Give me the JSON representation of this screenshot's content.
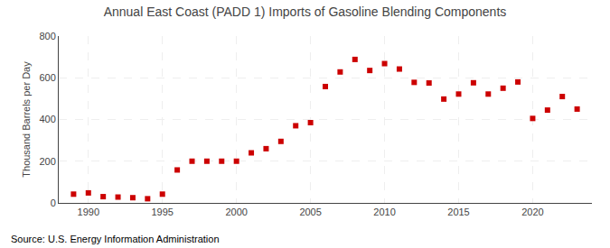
{
  "chart_data": {
    "type": "scatter",
    "title": "Annual East Coast (PADD 1) Imports of Gasoline Blending Components",
    "ylabel": "Thousand Barrels per Day",
    "annotations": [
      "Source: U.S. Energy Information Administration"
    ],
    "x": [
      1989,
      1990,
      1991,
      1992,
      1993,
      1994,
      1995,
      1996,
      1997,
      1998,
      1999,
      2000,
      2001,
      2002,
      2003,
      2004,
      2005,
      2006,
      2007,
      2008,
      2009,
      2010,
      2011,
      2012,
      2013,
      2014,
      2015,
      2016,
      2017,
      2018,
      2019,
      2020,
      2021,
      2022,
      2023
    ],
    "values": [
      42,
      48,
      30,
      28,
      25,
      20,
      42,
      158,
      200,
      200,
      200,
      200,
      240,
      260,
      295,
      370,
      385,
      558,
      628,
      688,
      635,
      668,
      642,
      578,
      575,
      498,
      522,
      576,
      522,
      550,
      580,
      405,
      445,
      510,
      450
    ],
    "color": "#cc0000",
    "marker": "square",
    "xlim": [
      1988,
      2024
    ],
    "xticks": [
      1990,
      1995,
      2000,
      2005,
      2010,
      2015,
      2020
    ],
    "ylim": [
      0,
      800
    ],
    "yticks": [
      0,
      200,
      400,
      600,
      800
    ],
    "grid": true
  }
}
